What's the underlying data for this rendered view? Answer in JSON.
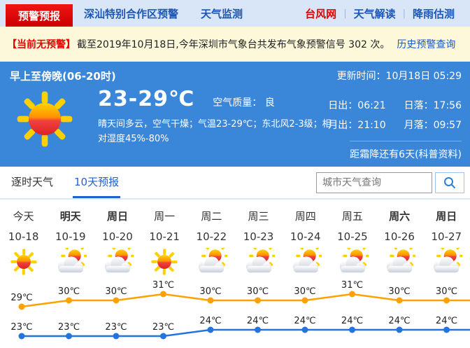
{
  "nav": {
    "tabs": [
      {
        "label": "预警预报",
        "active": true
      },
      {
        "label": "深汕特别合作区预警",
        "active": false
      },
      {
        "label": "天气监测",
        "active": false
      }
    ],
    "links": [
      {
        "label": "台风网"
      },
      {
        "label": "天气解读"
      },
      {
        "label": "降雨估测"
      }
    ]
  },
  "notice": {
    "badge": "【当前无预警】",
    "text": "截至2019年10月18日,今年深圳市气象台共发布气象预警信号 302 次。",
    "link": "历史预警查询"
  },
  "banner": {
    "period": "早上至傍晚(06-20时)",
    "update_time": "更新时间：10月18日 05:29",
    "temp_range": "23-29℃",
    "air_quality": "空气质量： 良",
    "description": "晴天间多云，空气干燥；气温23-29℃；东北风2-3级；相对湿度45%-80%",
    "sunrise": "日出：06:21",
    "sunset": "日落：17:56",
    "moonrise": "月出：21:10",
    "moonset": "月落：09:57",
    "frost_note": "距霜降还有6天(科普资料)"
  },
  "tabs": {
    "hourly": "逐时天气",
    "ten_day": "10天预报"
  },
  "search": {
    "placeholder": "城市天气查询"
  },
  "chart_data": {
    "type": "line",
    "title": "10天预报",
    "categories": [
      "今天",
      "明天",
      "周日",
      "周一",
      "周二",
      "周三",
      "周四",
      "周五",
      "周六",
      "周日"
    ],
    "dates": [
      "10-18",
      "10-19",
      "10-20",
      "10-21",
      "10-22",
      "10-23",
      "10-24",
      "10-25",
      "10-26",
      "10-27"
    ],
    "weekend_bold": [
      false,
      true,
      true,
      false,
      false,
      false,
      false,
      false,
      true,
      true
    ],
    "icons": [
      "sunny",
      "partly-cloudy",
      "partly-cloudy",
      "sunny",
      "partly-cloudy",
      "partly-cloudy",
      "partly-cloudy",
      "partly-cloudy",
      "partly-cloudy",
      "partly-cloudy"
    ],
    "unit": "℃",
    "series": [
      {
        "name": "high",
        "color": "#ffa200",
        "values": [
          29,
          30,
          30,
          31,
          30,
          30,
          30,
          31,
          30,
          30
        ]
      },
      {
        "name": "low",
        "color": "#2374dc",
        "values": [
          23,
          23,
          23,
          23,
          24,
          24,
          24,
          24,
          24,
          24
        ]
      }
    ],
    "legend_position": "none",
    "grid": false
  },
  "colors": {
    "accent_blue": "#2163cc",
    "nav_blue": "#1d57b5",
    "banner_blue": "#3a86d9",
    "alert_red": "#e60000",
    "notice_bg": "#fcf8d9",
    "high_line": "#ffa200",
    "low_line": "#2374dc"
  }
}
